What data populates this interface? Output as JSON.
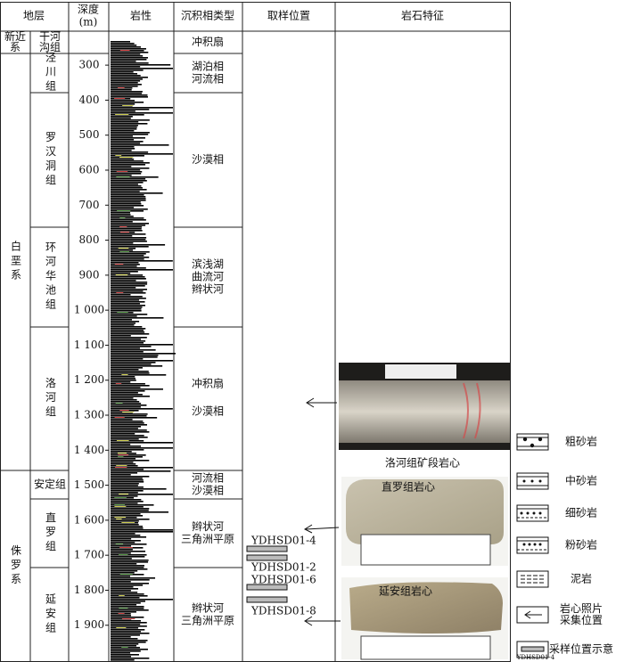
{
  "header": {
    "stratum": "地层",
    "depth": [
      "深度",
      "(m)"
    ],
    "lithology": "岩性",
    "facies": "沉积相类型",
    "sampling": "取样位置",
    "features": "岩石特征"
  },
  "systems": [
    [
      "新近",
      "系"
    ],
    "白垩系",
    "侏罗系"
  ],
  "formations": [
    [
      "干河",
      "沟组"
    ],
    "泾川组",
    "罗汉洞组",
    "环河华池组",
    "洛河组",
    [
      "安定组"
    ],
    "直罗组",
    "延安组"
  ],
  "facies": [
    [
      "冲积扇"
    ],
    [
      "湖泊相",
      "河流相"
    ],
    [
      "沙漠相"
    ],
    [
      "滨浅湖",
      "曲流河",
      "辫状河"
    ],
    [
      "冲积扇",
      "沙漠相"
    ],
    [
      "河流相",
      "沙漠相"
    ],
    [
      "辫状河",
      "三角洲平原"
    ],
    [
      "辫状河",
      "三角洲平原"
    ]
  ],
  "depth_lim": [
    203,
    2005
  ],
  "depth_ticks": [
    300,
    400,
    500,
    600,
    700,
    800,
    900,
    {
      "value": 1000,
      "label": "1 000"
    },
    {
      "value": 1100,
      "label": "1 100"
    },
    {
      "value": 1200,
      "label": "1 200"
    },
    {
      "value": 1300,
      "label": "1 300"
    },
    {
      "value": 1400,
      "label": "1 400"
    },
    {
      "value": 1500,
      "label": "1 500"
    },
    {
      "value": 1600,
      "label": "1 600"
    },
    {
      "value": 1700,
      "label": "1 700"
    },
    {
      "value": 1800,
      "label": "1 800"
    },
    {
      "value": 1900,
      "label": "1 900"
    }
  ],
  "samples": [
    "YDHSD01-4",
    "YDHSD01-2",
    "YDHSD01-6",
    "YDHSD01-8"
  ],
  "photos": {
    "caption": "洛河组矿段岩心",
    "zhiluo": "直罗组岩心",
    "yanan": "延安组岩心"
  },
  "legend": [
    [
      "粗砂岩"
    ],
    [
      "中砂岩"
    ],
    [
      "细砂岩"
    ],
    [
      "粉砂岩"
    ],
    [
      "泥岩"
    ],
    [
      "岩心照片",
      "采集位置"
    ],
    [
      "采样位置示意"
    ]
  ],
  "legend_sample": "YDHSD01-4"
}
